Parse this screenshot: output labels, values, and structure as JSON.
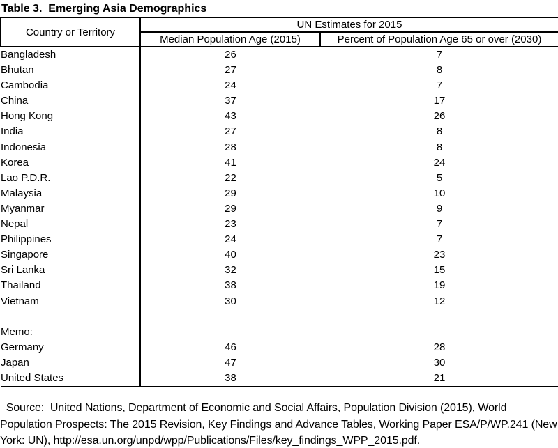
{
  "title": "Table 3.  Emerging Asia Demographics",
  "table": {
    "group_header": "UN Estimates for 2015",
    "column_headers": {
      "country": "Country or Territory",
      "median_age": "Median Population Age (2015)",
      "pct_65": "Percent of Population Age 65 or over (2030)"
    },
    "rows": [
      {
        "country": "Bangladesh",
        "median_age": "26",
        "pct_65": "7"
      },
      {
        "country": "Bhutan",
        "median_age": "27",
        "pct_65": "8"
      },
      {
        "country": "Cambodia",
        "median_age": "24",
        "pct_65": "7"
      },
      {
        "country": "China",
        "median_age": "37",
        "pct_65": "17"
      },
      {
        "country": "Hong Kong",
        "median_age": "43",
        "pct_65": "26"
      },
      {
        "country": "India",
        "median_age": "27",
        "pct_65": "8"
      },
      {
        "country": "Indonesia",
        "median_age": "28",
        "pct_65": "8"
      },
      {
        "country": "Korea",
        "median_age": "41",
        "pct_65": "24"
      },
      {
        "country": "Lao P.D.R.",
        "median_age": "22",
        "pct_65": "5"
      },
      {
        "country": "Malaysia",
        "median_age": "29",
        "pct_65": "10"
      },
      {
        "country": "Myanmar",
        "median_age": "29",
        "pct_65": "9"
      },
      {
        "country": "Nepal",
        "median_age": "23",
        "pct_65": "7"
      },
      {
        "country": "Philippines",
        "median_age": "24",
        "pct_65": "7"
      },
      {
        "country": "Singapore",
        "median_age": "40",
        "pct_65": "23"
      },
      {
        "country": "Sri Lanka",
        "median_age": "32",
        "pct_65": "15"
      },
      {
        "country": "Thailand",
        "median_age": "38",
        "pct_65": "19"
      },
      {
        "country": "Vietnam",
        "median_age": "30",
        "pct_65": "12"
      },
      {
        "country": "",
        "median_age": "",
        "pct_65": ""
      },
      {
        "country": "Memo:",
        "median_age": "",
        "pct_65": ""
      },
      {
        "country": "Germany",
        "median_age": "46",
        "pct_65": "28"
      },
      {
        "country": "Japan",
        "median_age": "47",
        "pct_65": "30"
      },
      {
        "country": "United States",
        "median_age": "38",
        "pct_65": "21"
      }
    ]
  },
  "source": {
    "lines": [
      "  Source:  United Nations, Department of Economic and Social Affairs, Population Division (2015), World",
      "Population Prospects: The 2015 Revision, Key Findings and Advance Tables, Working Paper ESA/P/WP.241 (New",
      "York: UN), http://esa.un.org/unpd/wpp/Publications/Files/key_findings_WPP_2015.pdf."
    ]
  },
  "colors": {
    "text": "#000000",
    "background": "#ffffff",
    "border": "#000000"
  },
  "chart_data": {
    "type": "table",
    "title": "Table 3.  Emerging Asia Demographics",
    "group_header": "UN Estimates for 2015",
    "categories": [
      "Bangladesh",
      "Bhutan",
      "Cambodia",
      "China",
      "Hong Kong",
      "India",
      "Indonesia",
      "Korea",
      "Lao P.D.R.",
      "Malaysia",
      "Myanmar",
      "Nepal",
      "Philippines",
      "Singapore",
      "Sri Lanka",
      "Thailand",
      "Vietnam",
      "Germany",
      "Japan",
      "United States"
    ],
    "series": [
      {
        "name": "Median Population Age (2015)",
        "values": [
          26,
          27,
          24,
          37,
          43,
          27,
          28,
          41,
          22,
          29,
          29,
          23,
          24,
          40,
          32,
          38,
          30,
          46,
          47,
          38
        ]
      },
      {
        "name": "Percent of Population Age 65 or over (2030)",
        "values": [
          7,
          8,
          7,
          17,
          26,
          8,
          8,
          24,
          5,
          10,
          9,
          7,
          7,
          23,
          15,
          19,
          12,
          28,
          30,
          21
        ]
      }
    ],
    "memo_categories": [
      "Germany",
      "Japan",
      "United States"
    ]
  }
}
